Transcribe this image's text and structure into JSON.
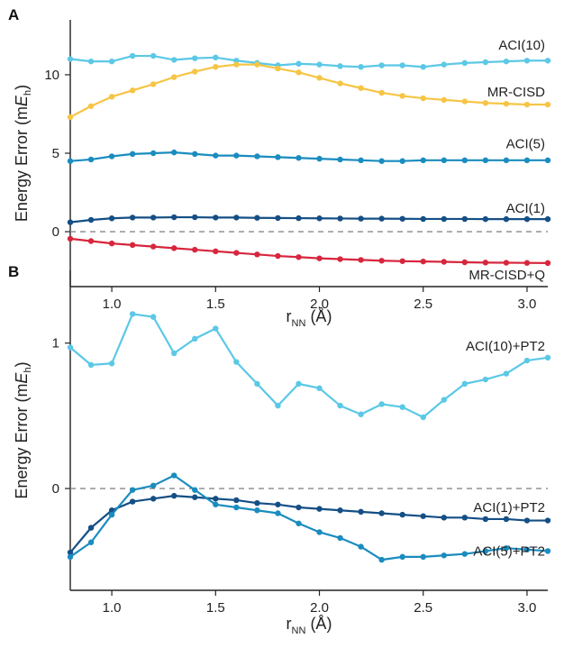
{
  "chart_data": [
    {
      "panel": "A",
      "type": "line",
      "xlabel_main": "r",
      "xlabel_sub": "NN",
      "xlabel_unit": " (Å)",
      "ylabel_prefix": "Energy Error (m",
      "ylabel_italic": "E",
      "ylabel_sub": "h",
      "ylabel_suffix": ")",
      "xlim": [
        0.8,
        3.1
      ],
      "ylim": [
        -3.5,
        13.5
      ],
      "xticks": [
        1.0,
        1.5,
        2.0,
        2.5,
        3.0
      ],
      "xtick_labels": [
        "1.0",
        "1.5",
        "2.0",
        "2.5",
        "3.0"
      ],
      "yticks": [
        0,
        5,
        10
      ],
      "ytick_labels": [
        "0",
        "5",
        "10"
      ],
      "reference_line": 0,
      "x": [
        0.8,
        0.9,
        1.0,
        1.1,
        1.2,
        1.3,
        1.4,
        1.5,
        1.6,
        1.7,
        1.8,
        1.9,
        2.0,
        2.1,
        2.2,
        2.3,
        2.4,
        2.5,
        2.6,
        2.7,
        2.8,
        2.9,
        3.0,
        3.1
      ],
      "series": [
        {
          "name": "ACI(10)",
          "color": "#5bc8e6",
          "label_y": 11.9,
          "values": [
            11.0,
            10.85,
            10.85,
            11.2,
            11.2,
            10.95,
            11.05,
            11.1,
            10.9,
            10.75,
            10.6,
            10.7,
            10.65,
            10.55,
            10.5,
            10.6,
            10.6,
            10.5,
            10.65,
            10.75,
            10.8,
            10.85,
            10.9,
            10.9
          ]
        },
        {
          "name": "MR-CISD",
          "color": "#f6c545",
          "label_y": 8.9,
          "values": [
            7.3,
            8.0,
            8.6,
            9.0,
            9.4,
            9.85,
            10.2,
            10.5,
            10.65,
            10.65,
            10.4,
            10.15,
            9.8,
            9.45,
            9.15,
            8.85,
            8.65,
            8.5,
            8.4,
            8.3,
            8.2,
            8.15,
            8.1,
            8.1
          ]
        },
        {
          "name": "ACI(5)",
          "color": "#1a8cbf",
          "label_y": 5.6,
          "values": [
            4.5,
            4.6,
            4.8,
            4.95,
            5.0,
            5.05,
            4.95,
            4.85,
            4.85,
            4.8,
            4.75,
            4.7,
            4.65,
            4.6,
            4.55,
            4.5,
            4.5,
            4.55,
            4.55,
            4.55,
            4.55,
            4.55,
            4.55,
            4.55
          ]
        },
        {
          "name": "ACI(1)",
          "color": "#144f85",
          "label_y": 1.5,
          "values": [
            0.6,
            0.75,
            0.85,
            0.9,
            0.9,
            0.92,
            0.92,
            0.9,
            0.9,
            0.88,
            0.87,
            0.86,
            0.85,
            0.84,
            0.83,
            0.83,
            0.82,
            0.81,
            0.81,
            0.81,
            0.8,
            0.8,
            0.8,
            0.8
          ]
        },
        {
          "name": "MR-CISD+Q",
          "color": "#d7263d",
          "label_y": -2.75,
          "values": [
            -0.45,
            -0.6,
            -0.75,
            -0.85,
            -0.95,
            -1.05,
            -1.15,
            -1.25,
            -1.35,
            -1.45,
            -1.55,
            -1.62,
            -1.7,
            -1.75,
            -1.8,
            -1.85,
            -1.88,
            -1.9,
            -1.92,
            -1.95,
            -1.97,
            -1.98,
            -1.99,
            -2.0
          ]
        }
      ]
    },
    {
      "panel": "B",
      "type": "line",
      "xlabel_main": "r",
      "xlabel_sub": "NN",
      "xlabel_unit": " (Å)",
      "ylabel_prefix": "Energy Error (m",
      "ylabel_italic": "E",
      "ylabel_sub": "h",
      "ylabel_suffix": ")",
      "xlim": [
        0.8,
        3.1
      ],
      "ylim": [
        -0.7,
        1.5
      ],
      "xticks": [
        1.0,
        1.5,
        2.0,
        2.5,
        3.0
      ],
      "xtick_labels": [
        "1.0",
        "1.5",
        "2.0",
        "2.5",
        "3.0"
      ],
      "yticks": [
        0,
        1
      ],
      "ytick_labels": [
        "0",
        "1"
      ],
      "reference_line": 0,
      "x": [
        0.8,
        0.9,
        1.0,
        1.1,
        1.2,
        1.3,
        1.4,
        1.5,
        1.6,
        1.7,
        1.8,
        1.9,
        2.0,
        2.1,
        2.2,
        2.3,
        2.4,
        2.5,
        2.6,
        2.7,
        2.8,
        2.9,
        3.0,
        3.1
      ],
      "series": [
        {
          "name": "ACI(10)+PT2",
          "color": "#5bc8e6",
          "label_y": 0.98,
          "values": [
            0.97,
            0.85,
            0.86,
            1.2,
            1.18,
            0.93,
            1.03,
            1.1,
            0.87,
            0.72,
            0.57,
            0.72,
            0.69,
            0.57,
            0.51,
            0.58,
            0.56,
            0.49,
            0.61,
            0.72,
            0.75,
            0.79,
            0.88,
            0.9
          ]
        },
        {
          "name": "ACI(1)+PT2",
          "color": "#144f85",
          "label_y": -0.13,
          "values": [
            -0.44,
            -0.27,
            -0.15,
            -0.09,
            -0.07,
            -0.05,
            -0.06,
            -0.07,
            -0.08,
            -0.1,
            -0.11,
            -0.13,
            -0.14,
            -0.15,
            -0.16,
            -0.17,
            -0.18,
            -0.19,
            -0.2,
            -0.2,
            -0.21,
            -0.21,
            -0.22,
            -0.22
          ]
        },
        {
          "name": "ACI(5)+PT2",
          "color": "#1a8cbf",
          "label_y": -0.43,
          "values": [
            -0.47,
            -0.37,
            -0.18,
            -0.01,
            0.02,
            0.09,
            -0.01,
            -0.11,
            -0.13,
            -0.15,
            -0.17,
            -0.24,
            -0.3,
            -0.34,
            -0.4,
            -0.49,
            -0.47,
            -0.47,
            -0.46,
            -0.45,
            -0.43,
            -0.41,
            -0.42,
            -0.43
          ]
        }
      ]
    }
  ]
}
